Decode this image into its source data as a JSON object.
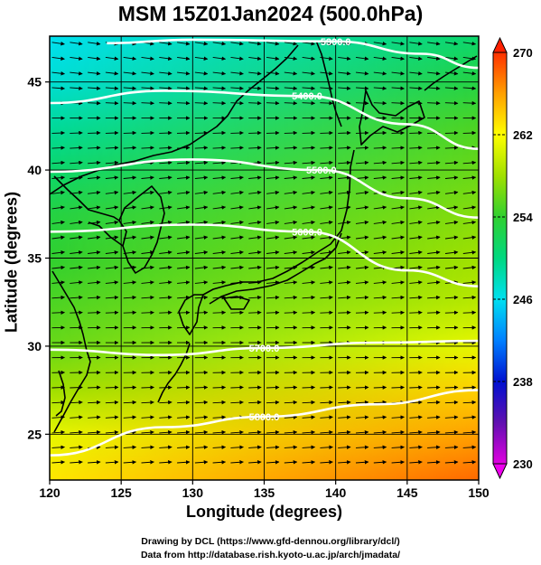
{
  "title": "MSM 15Z01Jan2024 (500.0hPa)",
  "credits": {
    "line1": "Drawing by DCL (https://www.gfd-dennou.org/library/dcl/)",
    "line2": "Data from http://database.rish.kyoto-u.ac.jp/arch/jmadata/"
  },
  "chart_data": {
    "type": "heatmap",
    "title": "MSM 15Z01Jan2024 (500.0hPa)",
    "xlabel": "Longitude (degrees)",
    "ylabel": "Latitude  (degrees)",
    "xlim": [
      120,
      150
    ],
    "ylim": [
      22.4,
      47.6
    ],
    "x_ticks": [
      120,
      125,
      130,
      135,
      140,
      145,
      150
    ],
    "y_ticks": [
      25,
      30,
      35,
      40,
      45
    ],
    "grid": true,
    "colorbar": {
      "range": [
        230,
        270
      ],
      "tick_labels": [
        "230",
        "238",
        "246",
        "254",
        "262",
        "270"
      ],
      "tick_values": [
        230,
        238,
        246,
        254,
        262,
        270
      ],
      "position": "right",
      "colors": [
        "#e000e0",
        "#6010b0",
        "#0010d0",
        "#0080ff",
        "#00e0f0",
        "#00d880",
        "#30d030",
        "#a0e000",
        "#ffff00",
        "#ffa000",
        "#ff3000"
      ]
    },
    "field_temperature": {
      "description_units": "K",
      "latitudes": [
        47.6,
        45,
        42.5,
        40,
        37.5,
        35,
        32.5,
        30,
        27.5,
        25,
        22.4
      ],
      "west_values": [
        246,
        247,
        249,
        251,
        253,
        254,
        255,
        256,
        258,
        261,
        263
      ],
      "east_values": [
        251,
        253,
        255,
        256,
        257,
        258,
        259,
        261,
        264,
        266,
        268
      ]
    },
    "contours": {
      "variable": "geopotential height",
      "lines": [
        {
          "label": "5300.0",
          "value": 5300,
          "lat": [
            47.2,
            47.4,
            47.3,
            46.6,
            45.8
          ],
          "lon": [
            124,
            130,
            140,
            146,
            150
          ]
        },
        {
          "label": "5400.0",
          "value": 5400,
          "lat": [
            43.8,
            44.5,
            44.2,
            42.6,
            41.2
          ],
          "lon": [
            120,
            128,
            138,
            145,
            150
          ]
        },
        {
          "label": "5500.0",
          "value": 5500,
          "lat": [
            39.9,
            40.6,
            40.0,
            38.4,
            37.3
          ],
          "lon": [
            120,
            130,
            139,
            145,
            150
          ]
        },
        {
          "label": "5600.0",
          "value": 5600,
          "lat": [
            36.5,
            36.9,
            36.5,
            34.3,
            33.4
          ],
          "lon": [
            120,
            130,
            138,
            145,
            150
          ]
        },
        {
          "label": "5700.0",
          "value": 5700,
          "lat": [
            29.8,
            29.5,
            29.9,
            30.2,
            30.3
          ],
          "lon": [
            120,
            128,
            135,
            143,
            150
          ]
        },
        {
          "label": "5800.0",
          "value": 5800,
          "lat": [
            23.8,
            25.4,
            26.0,
            26.7,
            27.5
          ],
          "lon": [
            120,
            128,
            135,
            143,
            150
          ]
        }
      ]
    },
    "wind_vectors": {
      "description": "streamline arrows, predominantly westerly",
      "direction_by_latitude": [
        {
          "lat": 46,
          "dir_deg": -8
        },
        {
          "lat": 42,
          "dir_deg": 2
        },
        {
          "lat": 38,
          "dir_deg": 8
        },
        {
          "lat": 34,
          "dir_deg": 6
        },
        {
          "lat": 30,
          "dir_deg": 0
        },
        {
          "lat": 26,
          "dir_deg": 4
        }
      ]
    }
  }
}
